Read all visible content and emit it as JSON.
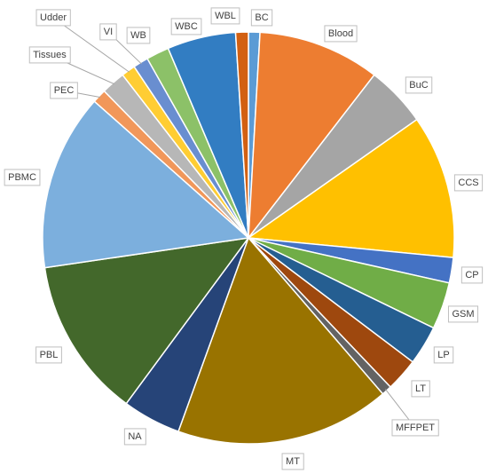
{
  "chart_data": {
    "type": "pie",
    "categories": [
      "BC",
      "Blood",
      "BuC",
      "CCS",
      "CP",
      "GSM",
      "LP",
      "LT",
      "MFFPET",
      "MT",
      "NA",
      "PBL",
      "PBMC",
      "PEC",
      "Tissues",
      "Udder",
      "VI",
      "WB",
      "WBC",
      "WBL"
    ],
    "values": [
      0.9,
      9.6,
      4.8,
      11.3,
      2.0,
      3.7,
      3.1,
      2.6,
      0.8,
      16.9,
      4.6,
      12.6,
      13.9,
      1.1,
      1.9,
      1.1,
      1.2,
      1.8,
      5.4,
      1.0
    ],
    "colors": [
      "#5b9bd5",
      "#ed7d31",
      "#a5a5a5",
      "#ffc000",
      "#4472c4",
      "#70ad47",
      "#255e91",
      "#9e480e",
      "#636363",
      "#997300",
      "#264478",
      "#43682b",
      "#7cafdd",
      "#f1975a",
      "#b7b7b7",
      "#ffcd33",
      "#698ed0",
      "#8cc168",
      "#327dc2",
      "#d26012"
    ]
  }
}
